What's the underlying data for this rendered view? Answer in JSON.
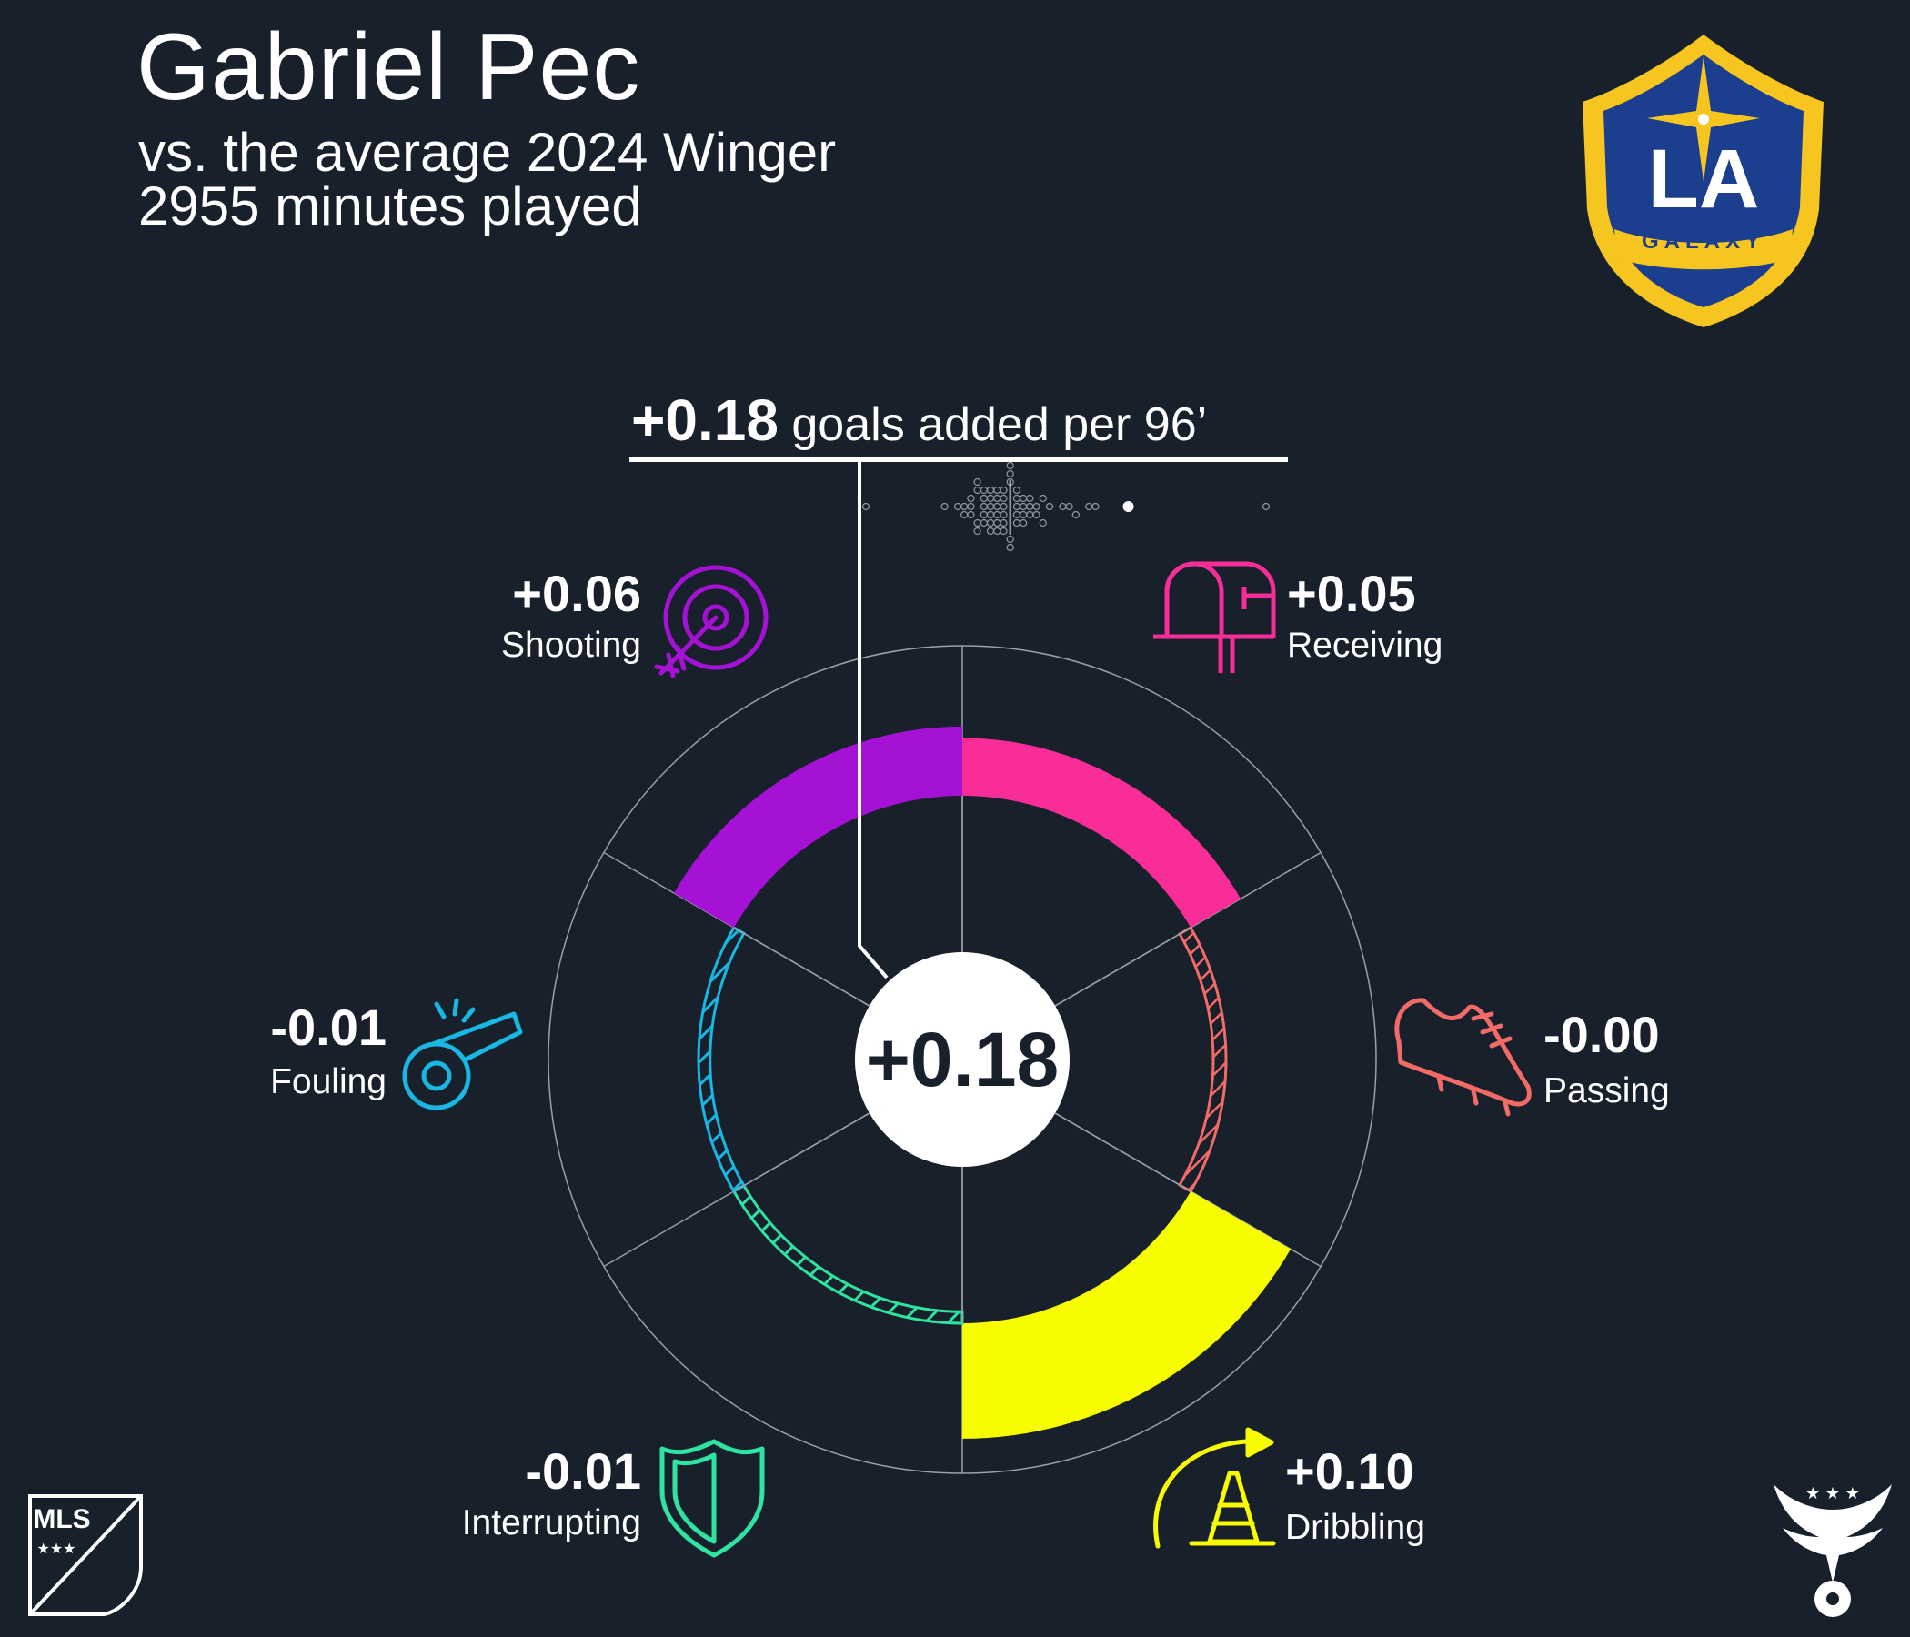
{
  "header": {
    "player_name": "Gabriel Pec",
    "comparison": "vs. the average 2024 Winger",
    "minutes": "2955 minutes played"
  },
  "headline": {
    "total_value": "+0.18",
    "total_label": "goals added per 96’"
  },
  "center_label": "+0.18",
  "logos": {
    "club": {
      "name": "la-galaxy-crest",
      "letters": "LA",
      "word": "GALAXY"
    },
    "league": {
      "name": "mls-logo",
      "letters": "MLS"
    },
    "creator": {
      "name": "eagle-soccer-logo"
    }
  },
  "colors": {
    "background": "#18202b",
    "shooting": "#a512d6",
    "receiving": "#f82d98",
    "passing": "#f26b67",
    "dribbling": "#f7fc00",
    "interrupting": "#2fe3a1",
    "fouling": "#19b7e3",
    "grid": "#9aa1a8"
  },
  "chart_data": {
    "type": "radial-bar",
    "total": 0.18,
    "categories": [
      {
        "key": "receiving",
        "name": "Receiving",
        "value": 0.05,
        "label": "+0.05",
        "color": "#f82d98",
        "icon": "mailbox-icon"
      },
      {
        "key": "passing",
        "name": "Passing",
        "value": -0.0,
        "label": "-0.00",
        "color": "#f26b67",
        "icon": "soccer-cleat-icon"
      },
      {
        "key": "dribbling",
        "name": "Dribbling",
        "value": 0.1,
        "label": "+0.10",
        "color": "#f7fc00",
        "icon": "cone-arrow-icon"
      },
      {
        "key": "interrupting",
        "name": "Interrupting",
        "value": -0.01,
        "label": "-0.01",
        "color": "#2fe3a1",
        "icon": "shield-icon"
      },
      {
        "key": "fouling",
        "name": "Fouling",
        "value": -0.01,
        "label": "-0.01",
        "color": "#19b7e3",
        "icon": "whistle-icon"
      },
      {
        "key": "shooting",
        "name": "Shooting",
        "value": 0.06,
        "label": "+0.06",
        "color": "#a512d6",
        "icon": "target-arrow-icon"
      }
    ],
    "distribution": {
      "description_values": [
        -0.22,
        -0.1,
        -0.08,
        -0.07,
        -0.07,
        -0.06,
        -0.06,
        -0.06,
        -0.05,
        -0.05,
        -0.05,
        -0.05,
        -0.04,
        -0.04,
        -0.04,
        -0.04,
        -0.04,
        -0.03,
        -0.03,
        -0.03,
        -0.03,
        -0.03,
        -0.03,
        -0.02,
        -0.02,
        -0.02,
        -0.02,
        -0.02,
        -0.02,
        -0.01,
        -0.01,
        -0.01,
        -0.01,
        -0.01,
        -0.01,
        0.0,
        0.0,
        0.0,
        0.0,
        0.0,
        0.01,
        0.01,
        0.01,
        0.01,
        0.01,
        0.02,
        0.02,
        0.02,
        0.02,
        0.03,
        0.03,
        0.03,
        0.04,
        0.04,
        0.05,
        0.05,
        0.06,
        0.08,
        0.09,
        0.1,
        0.12,
        0.13,
        0.18,
        0.39
      ],
      "highlight": 0.18,
      "average": 0.0
    }
  }
}
